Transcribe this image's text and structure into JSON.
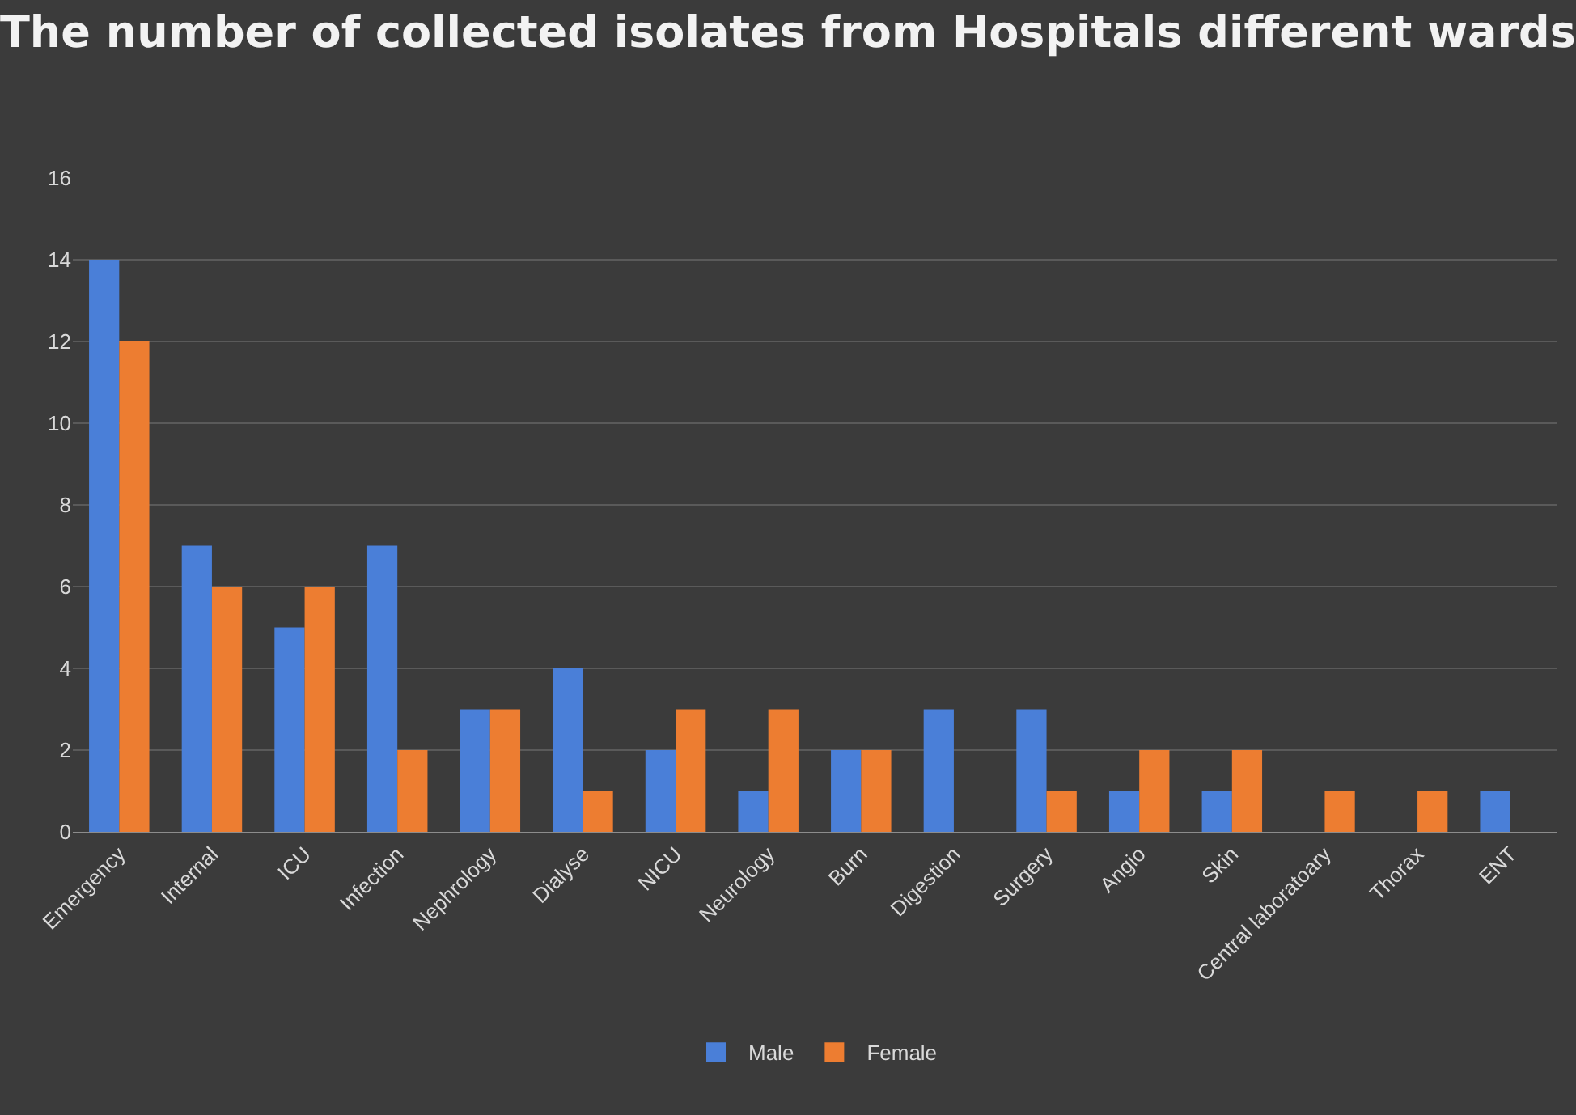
{
  "chart_data": {
    "type": "bar",
    "title": "The number of collected isolates from Hospitals different wards",
    "categories": [
      "Emergency",
      "Internal",
      "ICU",
      "Infection",
      "Nephrology",
      "Dialyse",
      "NICU",
      "Neurology",
      "Burn",
      "Digestion",
      "Surgery",
      "Angio",
      "Skin",
      "Central laboratoary",
      "Thorax",
      "ENT"
    ],
    "series": [
      {
        "name": "Male",
        "color": "#4a7fd8",
        "values": [
          14,
          7,
          5,
          7,
          3,
          4,
          2,
          1,
          2,
          3,
          3,
          1,
          1,
          0,
          0,
          1
        ]
      },
      {
        "name": "Female",
        "color": "#ed7d31",
        "values": [
          12,
          6,
          6,
          2,
          3,
          1,
          3,
          3,
          2,
          0,
          1,
          2,
          2,
          1,
          1,
          0
        ]
      }
    ],
    "ylim": [
      0,
      16
    ],
    "yticks": [
      0,
      2,
      4,
      6,
      8,
      10,
      12,
      14,
      16
    ],
    "grid": "y",
    "legend": "bottom"
  }
}
